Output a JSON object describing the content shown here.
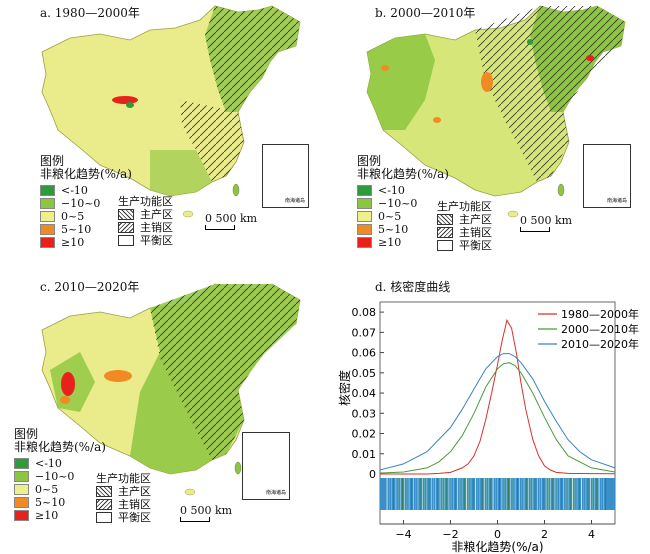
{
  "panels": [
    {
      "id": "a",
      "title": "a. 1980—2000年"
    },
    {
      "id": "b",
      "title": "b. 2000—2010年"
    },
    {
      "id": "c",
      "title": "c. 2010—2020年"
    }
  ],
  "legend": {
    "title": "图例",
    "subtitle": "非粮化趋势(%/a)",
    "items": [
      {
        "label": "<-10",
        "color": "#2e9a3a"
      },
      {
        "label": "−10~0",
        "color": "#8cc63f"
      },
      {
        "label": "0~5",
        "color": "#eef08a"
      },
      {
        "label": "5~10",
        "color": "#f08a24"
      },
      {
        "label": "≥10",
        "color": "#e8211c"
      }
    ]
  },
  "function_zones": {
    "title": "生产功能区",
    "items": [
      {
        "label": "主产区",
        "pattern": "backslash-hatch"
      },
      {
        "label": "主销区",
        "pattern": "slash-hatch"
      },
      {
        "label": "平衡区",
        "pattern": "empty"
      }
    ]
  },
  "scale": {
    "label": "0  500 km"
  },
  "inset": {
    "label": "南海诸岛"
  },
  "chart_title": "d. 核密度曲线",
  "chart_data": {
    "type": "line",
    "title": "d. 核密度曲线",
    "xlabel": "非粮化趋势(%/a)",
    "ylabel": "核密度",
    "xlim": [
      -5,
      5
    ],
    "ylim": [
      0,
      0.085
    ],
    "xticks": [
      -4,
      -2,
      0,
      2,
      4
    ],
    "yticks": [
      0,
      0.01,
      0.02,
      0.03,
      0.04,
      0.05,
      0.06,
      0.07,
      0.08
    ],
    "legend_position": "top-right",
    "rug": true,
    "series": [
      {
        "name": "1980—2000年",
        "color": "#d9312b",
        "x": [
          -5,
          -3,
          -2.5,
          -2,
          -1.5,
          -1.25,
          -1,
          -0.75,
          -0.5,
          -0.25,
          0,
          0.2,
          0.4,
          0.6,
          0.8,
          1,
          1.2,
          1.5,
          1.75,
          2,
          2.25,
          2.5,
          3,
          4,
          5
        ],
        "y": [
          0,
          0,
          0.0003,
          0.0008,
          0.003,
          0.005,
          0.009,
          0.016,
          0.027,
          0.04,
          0.054,
          0.066,
          0.076,
          0.072,
          0.06,
          0.045,
          0.032,
          0.017,
          0.009,
          0.004,
          0.002,
          0.0008,
          0.0003,
          0.0002,
          0.0001
        ]
      },
      {
        "name": "2000—2010年",
        "color": "#4a9a3a",
        "x": [
          -5,
          -4,
          -3,
          -2.5,
          -2,
          -1.5,
          -1,
          -0.5,
          0,
          0.25,
          0.5,
          0.75,
          1,
          1.5,
          2,
          2.5,
          3,
          4,
          5
        ],
        "y": [
          0.0005,
          0.001,
          0.003,
          0.006,
          0.011,
          0.019,
          0.03,
          0.043,
          0.052,
          0.0545,
          0.055,
          0.0535,
          0.05,
          0.04,
          0.028,
          0.017,
          0.009,
          0.003,
          0.001
        ]
      },
      {
        "name": "2010—2020年",
        "color": "#3b82c4",
        "x": [
          -5,
          -4,
          -3,
          -2,
          -1.5,
          -1,
          -0.5,
          0,
          0.25,
          0.5,
          0.75,
          1,
          1.5,
          2,
          2.5,
          3,
          3.5,
          4,
          5
        ],
        "y": [
          0.002,
          0.005,
          0.011,
          0.023,
          0.032,
          0.042,
          0.052,
          0.058,
          0.0595,
          0.0595,
          0.058,
          0.055,
          0.047,
          0.036,
          0.026,
          0.017,
          0.011,
          0.007,
          0.003
        ]
      }
    ]
  }
}
